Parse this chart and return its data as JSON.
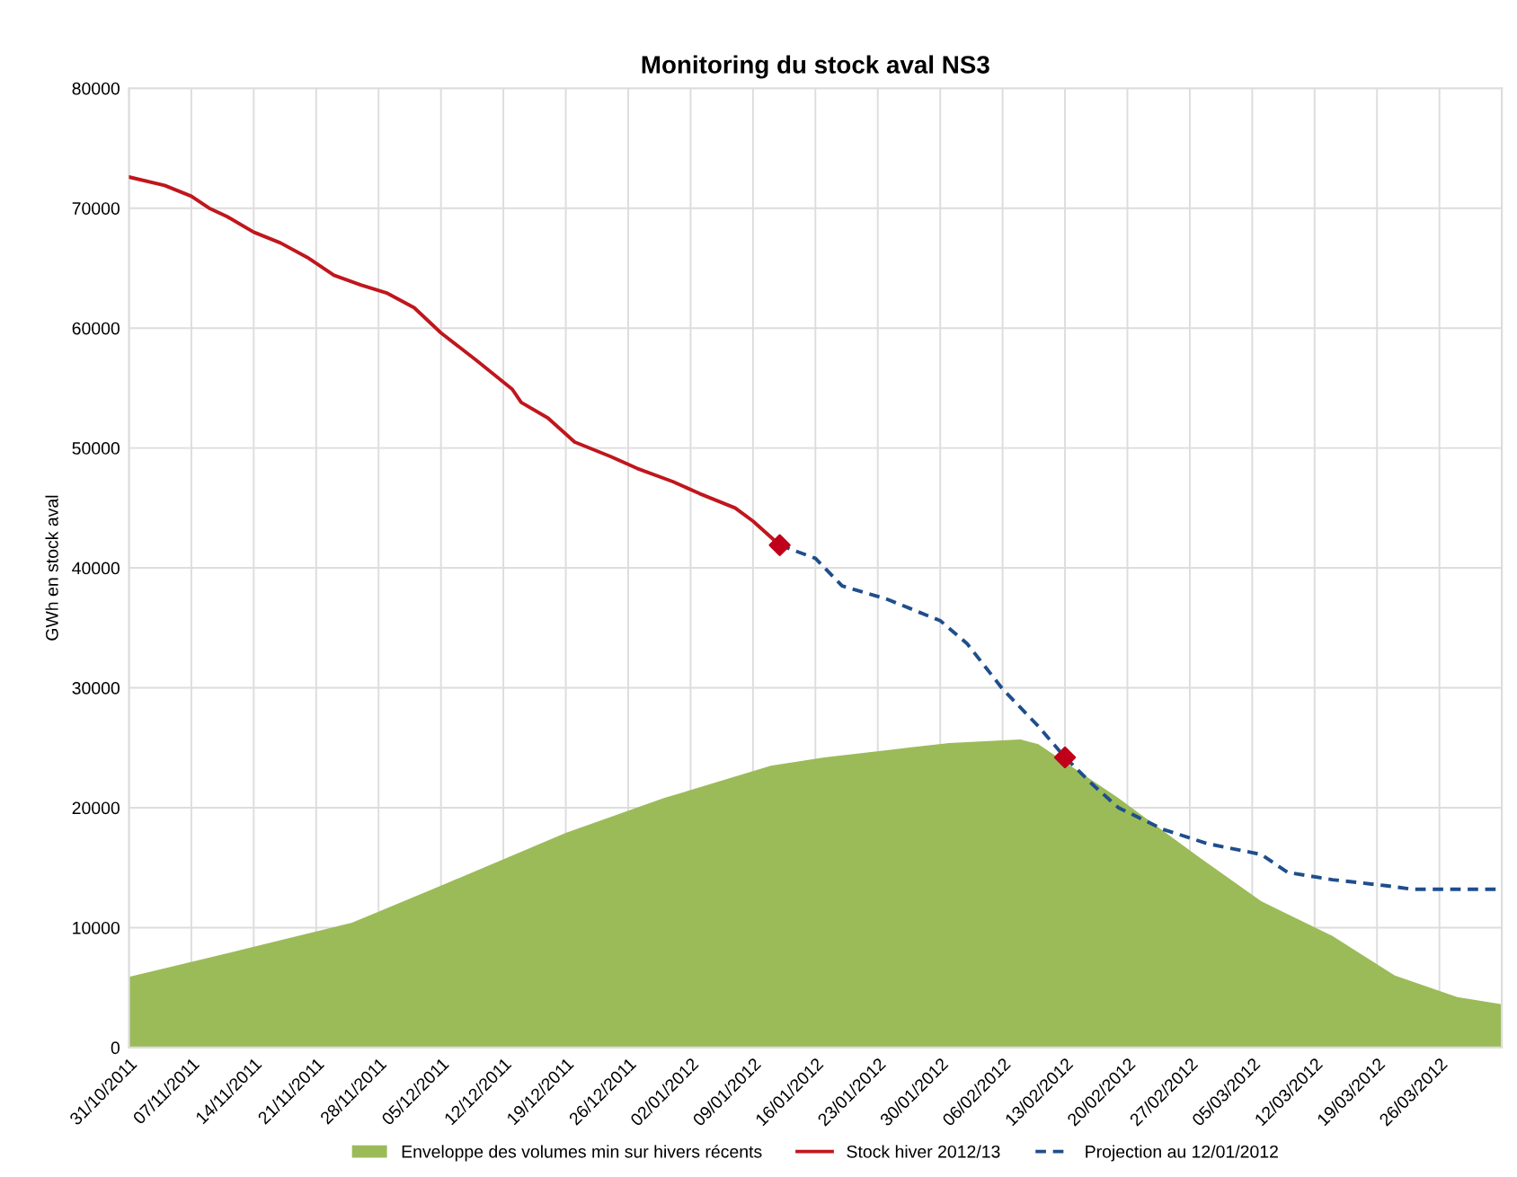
{
  "chart_data": {
    "type": "line",
    "title": "Monitoring du stock aval NS3",
    "ylabel": "GWh en stock aval",
    "xlim": [
      "2011-10-31",
      "2012-04-02"
    ],
    "ylim": [
      0,
      80000
    ],
    "yticks": [
      0,
      10000,
      20000,
      30000,
      40000,
      50000,
      60000,
      70000,
      80000
    ],
    "xticks": [
      {
        "value": "2011-10-31",
        "label": "31/10/2011"
      },
      {
        "value": "2011-11-07",
        "label": "07/11/2011"
      },
      {
        "value": "2011-11-14",
        "label": "14/11/2011"
      },
      {
        "value": "2011-11-21",
        "label": "21/11/2011"
      },
      {
        "value": "2011-11-28",
        "label": "28/11/2011"
      },
      {
        "value": "2011-12-05",
        "label": "05/12/2011"
      },
      {
        "value": "2011-12-12",
        "label": "12/12/2011"
      },
      {
        "value": "2011-12-19",
        "label": "19/12/2011"
      },
      {
        "value": "2011-12-26",
        "label": "26/12/2011"
      },
      {
        "value": "2012-01-02",
        "label": "02/01/2012"
      },
      {
        "value": "2012-01-09",
        "label": "09/01/2012"
      },
      {
        "value": "2012-01-16",
        "label": "16/01/2012"
      },
      {
        "value": "2012-01-23",
        "label": "23/01/2012"
      },
      {
        "value": "2012-01-30",
        "label": "30/01/2012"
      },
      {
        "value": "2012-02-06",
        "label": "06/02/2012"
      },
      {
        "value": "2012-02-13",
        "label": "13/02/2012"
      },
      {
        "value": "2012-02-20",
        "label": "20/02/2012"
      },
      {
        "value": "2012-02-27",
        "label": "27/02/2012"
      },
      {
        "value": "2012-03-05",
        "label": "05/03/2012"
      },
      {
        "value": "2012-03-12",
        "label": "12/03/2012"
      },
      {
        "value": "2012-03-19",
        "label": "19/03/2012"
      },
      {
        "value": "2012-03-26",
        "label": "26/03/2012"
      }
    ],
    "grid": true,
    "legend": "bottom",
    "series": [
      {
        "type": "area",
        "name": "Enveloppe des volumes min sur hivers récents",
        "color": "#9bbb59",
        "x": [
          "2011-10-31",
          "2011-11-04",
          "2011-11-14",
          "2011-11-25",
          "2011-12-05",
          "2011-12-19",
          "2011-12-30",
          "2012-01-11",
          "2012-01-17",
          "2012-01-24",
          "2012-01-31",
          "2012-02-08",
          "2012-02-10",
          "2012-02-19",
          "2012-02-28",
          "2012-03-06",
          "2012-03-14",
          "2012-03-21",
          "2012-03-28",
          "2012-04-02"
        ],
        "values": [
          5900,
          6600,
          8400,
          10400,
          13500,
          17900,
          20800,
          23500,
          24200,
          24800,
          25400,
          25700,
          25300,
          20800,
          15900,
          12200,
          9300,
          6000,
          4200,
          3600
        ]
      },
      {
        "name": "Stock hiver 2012/13",
        "color": "#c0161d",
        "line_style": "solid",
        "x": [
          "2011-10-31",
          "2011-11-04",
          "2011-11-07",
          "2011-11-09",
          "2011-11-11",
          "2011-11-14",
          "2011-11-17",
          "2011-11-20",
          "2011-11-23",
          "2011-11-26",
          "2011-11-29",
          "2011-12-02",
          "2011-12-05",
          "2011-12-09",
          "2011-12-13",
          "2011-12-14",
          "2011-12-17",
          "2011-12-20",
          "2011-12-24",
          "2011-12-27",
          "2011-12-31",
          "2012-01-03",
          "2012-01-07",
          "2012-01-09",
          "2012-01-12"
        ],
        "values": [
          72600,
          71900,
          71000,
          70000,
          69300,
          68000,
          67100,
          65900,
          64400,
          63600,
          62900,
          61700,
          59600,
          57300,
          54900,
          53800,
          52500,
          50500,
          49300,
          48300,
          47200,
          46200,
          45000,
          43900,
          41900
        ]
      },
      {
        "name": "Projection au 12/01/2012",
        "color": "#1f4e8c",
        "line_style": "dashed",
        "x": [
          "2012-01-12",
          "2012-01-16",
          "2012-01-19",
          "2012-01-24",
          "2012-01-30",
          "2012-02-02",
          "2012-02-06",
          "2012-02-10",
          "2012-02-13",
          "2012-02-16",
          "2012-02-19",
          "2012-02-24",
          "2012-02-29",
          "2012-03-06",
          "2012-03-09",
          "2012-03-14",
          "2012-03-20",
          "2012-03-23",
          "2012-04-02"
        ],
        "values": [
          41900,
          40800,
          38500,
          37400,
          35600,
          33700,
          29900,
          26800,
          24200,
          22000,
          20000,
          18200,
          17000,
          16100,
          14600,
          14000,
          13500,
          13200,
          13200
        ]
      },
      {
        "type": "scatter",
        "marker": "diamond",
        "color": "#c0001a",
        "x": [
          "2012-01-12",
          "2012-02-13"
        ],
        "values": [
          41900,
          24200
        ]
      }
    ]
  }
}
